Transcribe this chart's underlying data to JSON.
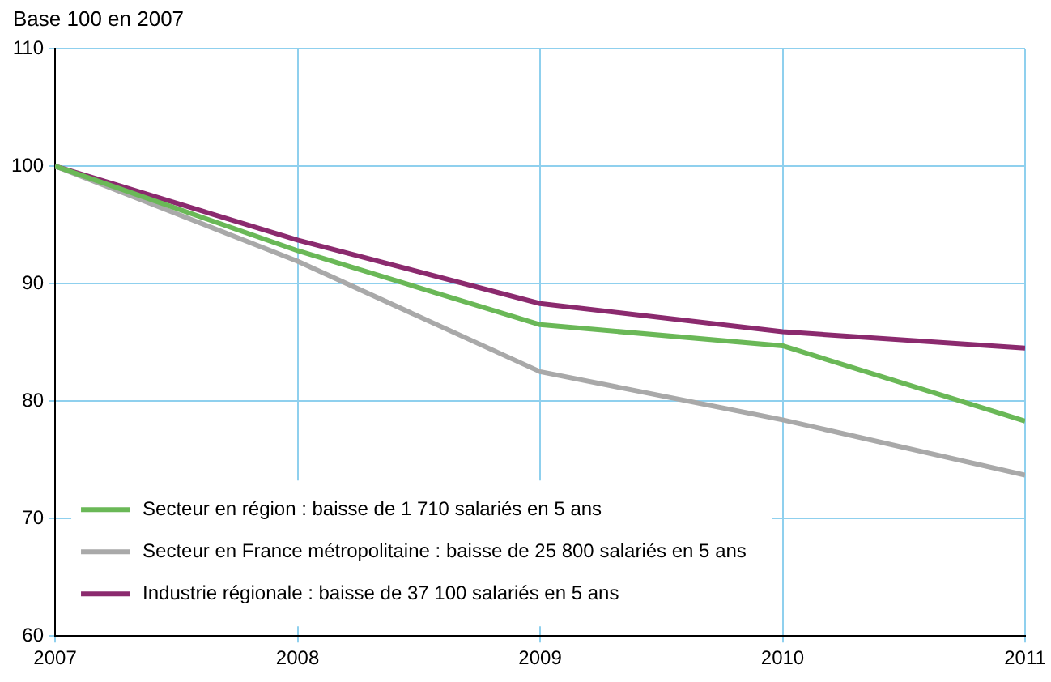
{
  "chart_data": {
    "type": "line",
    "ylabel": "Base 100 en 2007",
    "x": [
      2007,
      2008,
      2009,
      2010,
      2011
    ],
    "xlim": [
      2007,
      2011
    ],
    "xticks": [
      2007,
      2008,
      2009,
      2010,
      2011
    ],
    "ylim": [
      60,
      110
    ],
    "yticks": [
      60,
      70,
      80,
      90,
      100,
      110
    ],
    "grid": true,
    "legend": "bottom left",
    "marker": "none",
    "series": [
      {
        "name": "Secteur en région : baisse de 1 710 salariés en 5 ans",
        "color": "#6ab857",
        "values": [
          100,
          92.8,
          86.5,
          84.7,
          78.3
        ]
      },
      {
        "name": "Secteur en France métropolitaine : baisse de 25 800 salariés en 5 ans",
        "color": "#a9a9a9",
        "values": [
          100,
          91.9,
          82.5,
          78.4,
          73.7
        ]
      },
      {
        "name": "Industrie régionale : baisse de 37 100 salariés en 5 ans",
        "color": "#8b2a6e",
        "values": [
          100,
          93.7,
          88.3,
          85.9,
          84.5
        ]
      }
    ]
  }
}
